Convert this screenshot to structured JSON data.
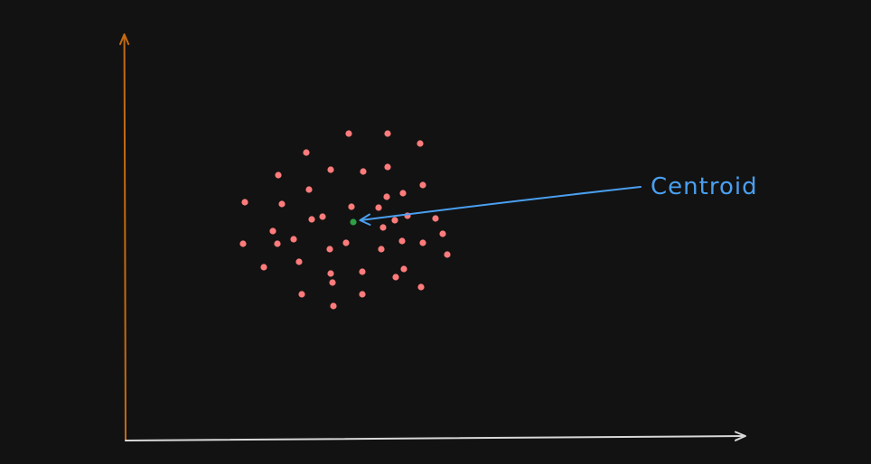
{
  "diagram": {
    "annotation": {
      "label": "Centroid"
    },
    "colors": {
      "background": "#121212",
      "y_axis": "#c36a12",
      "x_axis": "#d8d8d8",
      "cluster_point": "#ff7b7b",
      "centroid_point": "#2f9e44",
      "annotation": "#4a9ff0"
    }
  }
}
